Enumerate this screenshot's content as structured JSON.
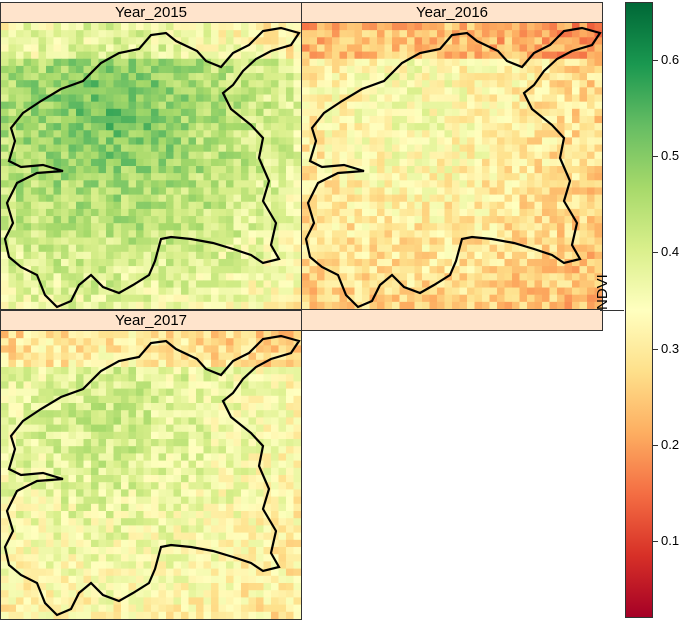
{
  "chart_data": {
    "type": "heatmap",
    "panels": [
      {
        "name": "Year_2015",
        "mean_ndvi": 0.4,
        "min_ndvi": 0.25,
        "max_ndvi": 0.62
      },
      {
        "name": "Year_2016",
        "mean_ndvi": 0.28,
        "min_ndvi": 0.12,
        "max_ndvi": 0.4
      },
      {
        "name": "Year_2017",
        "mean_ndvi": 0.34,
        "min_ndvi": 0.18,
        "max_ndvi": 0.48
      }
    ],
    "colorbar": {
      "label": "NDVI",
      "range": [
        0.02,
        0.66
      ],
      "ticks": [
        0.1,
        0.2,
        0.3,
        0.4,
        0.5,
        0.6
      ],
      "tick_labels": [
        "0.1",
        "0.2",
        "0.3",
        "0.4",
        "0.5",
        "0.6"
      ],
      "colors": [
        "#a50026",
        "#d73027",
        "#f46d43",
        "#fdae61",
        "#fee08b",
        "#ffffbf",
        "#d9ef8b",
        "#a6d96a",
        "#66bd63",
        "#1a9850",
        "#006837"
      ]
    }
  }
}
